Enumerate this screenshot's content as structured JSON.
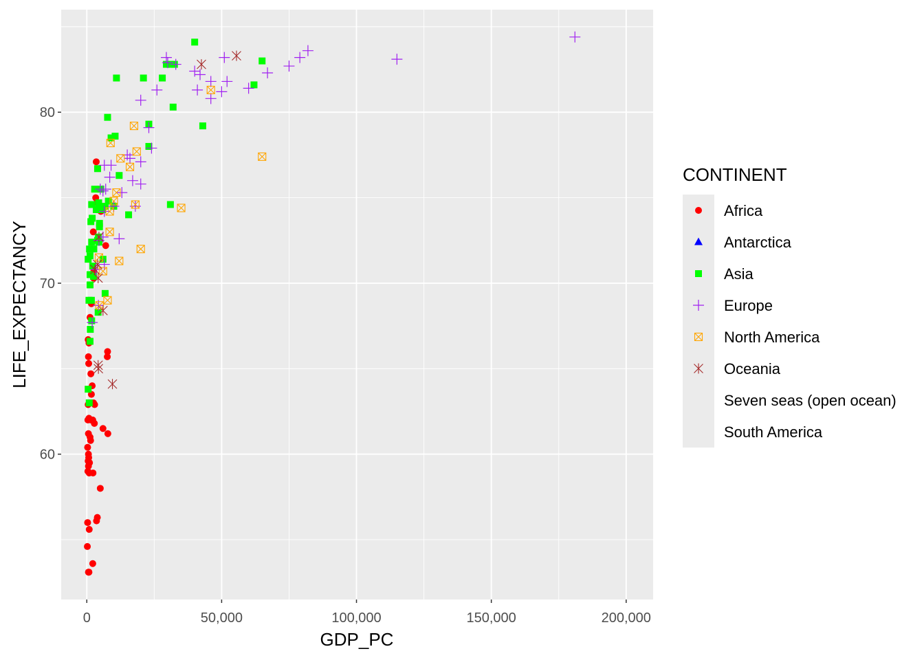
{
  "chart_data": {
    "type": "scatter",
    "xlabel": "GDP_PC",
    "ylabel": "LIFE_EXPECTANCY",
    "xlim": [
      -9500,
      210000
    ],
    "ylim": [
      51.5,
      86
    ],
    "x_ticks": [
      0,
      50000,
      100000,
      150000,
      200000
    ],
    "x_tick_labels": [
      "0",
      "50,000",
      "100,000",
      "150,000",
      "200,000"
    ],
    "y_ticks": [
      60,
      70,
      80
    ],
    "y_tick_labels": [
      "60",
      "70",
      "80"
    ],
    "grid": true,
    "legend": {
      "title": "CONTINENT",
      "placement": "right",
      "entries": [
        {
          "label": "Africa",
          "shape": "circle",
          "color": "#ff0000"
        },
        {
          "label": "Antarctica",
          "shape": "triangle",
          "color": "#0000ff"
        },
        {
          "label": "Asia",
          "shape": "square",
          "color": "#00ff00"
        },
        {
          "label": "Europe",
          "shape": "plus",
          "color": "#a020f0"
        },
        {
          "label": "North America",
          "shape": "boxx",
          "color": "#ffa500"
        },
        {
          "label": "Oceania",
          "shape": "asterisk",
          "color": "#a52a2a"
        },
        {
          "label": "Seven seas (open ocean)",
          "shape": "none",
          "color": ""
        },
        {
          "label": "South America",
          "shape": "none",
          "color": ""
        }
      ]
    },
    "series": [
      {
        "name": "Africa",
        "shape": "circle",
        "color": "#ff0000",
        "points": [
          [
            3500,
            77.1
          ],
          [
            3300,
            75
          ],
          [
            3700,
            74.7
          ],
          [
            3500,
            74.3
          ],
          [
            5200,
            74.2
          ],
          [
            2400,
            73
          ],
          [
            7000,
            72.2
          ],
          [
            3800,
            72.5
          ],
          [
            2500,
            70.3
          ],
          [
            2600,
            70.7
          ],
          [
            1700,
            68.8
          ],
          [
            1200,
            68
          ],
          [
            500,
            66.7
          ],
          [
            800,
            66.5
          ],
          [
            600,
            65.7
          ],
          [
            700,
            65.3
          ],
          [
            7700,
            66
          ],
          [
            7600,
            65.7
          ],
          [
            1500,
            64.7
          ],
          [
            2000,
            64
          ],
          [
            1700,
            63.5
          ],
          [
            500,
            62.9
          ],
          [
            1000,
            63
          ],
          [
            2500,
            63
          ],
          [
            2900,
            62.9
          ],
          [
            400,
            62
          ],
          [
            800,
            62.1
          ],
          [
            1500,
            62
          ],
          [
            2200,
            62
          ],
          [
            2800,
            61.8
          ],
          [
            6000,
            61.5
          ],
          [
            7800,
            61.2
          ],
          [
            600,
            61.2
          ],
          [
            1200,
            61
          ],
          [
            1400,
            60.8
          ],
          [
            300,
            60.4
          ],
          [
            600,
            60
          ],
          [
            700,
            59.8
          ],
          [
            500,
            59.6
          ],
          [
            600,
            59.3
          ],
          [
            1000,
            59.5
          ],
          [
            400,
            59
          ],
          [
            900,
            58.9
          ],
          [
            2300,
            58.9
          ],
          [
            5000,
            58
          ],
          [
            3900,
            56.3
          ],
          [
            3600,
            56.1
          ],
          [
            300,
            56
          ],
          [
            900,
            55.6
          ],
          [
            200,
            54.6
          ],
          [
            2200,
            53.6
          ],
          [
            600,
            53.1
          ],
          [
            800,
            53.1
          ]
        ]
      },
      {
        "name": "Antarctica",
        "shape": "triangle",
        "color": "#0000ff",
        "points": []
      },
      {
        "name": "Asia",
        "shape": "square",
        "color": "#00ff00",
        "points": [
          [
            40000,
            84.1
          ],
          [
            65000,
            83
          ],
          [
            29500,
            82.8
          ],
          [
            31000,
            82.8
          ],
          [
            32500,
            82.8
          ],
          [
            11000,
            82
          ],
          [
            21000,
            82
          ],
          [
            28000,
            82
          ],
          [
            62000,
            81.6
          ],
          [
            32000,
            80.3
          ],
          [
            7700,
            79.7
          ],
          [
            23000,
            79.3
          ],
          [
            43000,
            79.2
          ],
          [
            10500,
            78.6
          ],
          [
            9000,
            78.5
          ],
          [
            23000,
            78
          ],
          [
            4000,
            76.7
          ],
          [
            12000,
            76.3
          ],
          [
            5200,
            75.5
          ],
          [
            2900,
            75.5
          ],
          [
            8000,
            74.8
          ],
          [
            1800,
            74.6
          ],
          [
            4400,
            74.7
          ],
          [
            6800,
            74.5
          ],
          [
            3500,
            74.3
          ],
          [
            5800,
            74.3
          ],
          [
            31000,
            74.6
          ],
          [
            10000,
            74.5
          ],
          [
            15500,
            74
          ],
          [
            2000,
            73.8
          ],
          [
            1500,
            73.6
          ],
          [
            4700,
            73.5
          ],
          [
            4700,
            73.3
          ],
          [
            4300,
            72.7
          ],
          [
            4000,
            72.5
          ],
          [
            1800,
            72.4
          ],
          [
            4500,
            72.4
          ],
          [
            1000,
            72
          ],
          [
            2600,
            72
          ],
          [
            1200,
            71.6
          ],
          [
            500,
            71.4
          ],
          [
            6000,
            71.4
          ],
          [
            2200,
            71
          ],
          [
            1200,
            70.5
          ],
          [
            2500,
            70.4
          ],
          [
            1200,
            69.9
          ],
          [
            6800,
            69.4
          ],
          [
            800,
            69
          ],
          [
            1700,
            69
          ],
          [
            4200,
            68.3
          ],
          [
            1800,
            67.8
          ],
          [
            1300,
            67.3
          ],
          [
            1200,
            66.6
          ],
          [
            500,
            63.8
          ],
          [
            900,
            63
          ]
        ]
      },
      {
        "name": "Europe",
        "shape": "plus",
        "color": "#a020f0",
        "points": [
          [
            181000,
            84.4
          ],
          [
            115000,
            83.1
          ],
          [
            82000,
            83.6
          ],
          [
            79000,
            83.2
          ],
          [
            75000,
            82.7
          ],
          [
            67000,
            82.3
          ],
          [
            29500,
            83.2
          ],
          [
            30000,
            82.9
          ],
          [
            33000,
            82.8
          ],
          [
            51000,
            83.2
          ],
          [
            40000,
            82.4
          ],
          [
            42000,
            82.2
          ],
          [
            46000,
            81.8
          ],
          [
            52000,
            81.8
          ],
          [
            41000,
            81.3
          ],
          [
            50000,
            81.2
          ],
          [
            60000,
            81.4
          ],
          [
            26000,
            81.3
          ],
          [
            46000,
            80.8
          ],
          [
            20000,
            80.7
          ],
          [
            23000,
            79.1
          ],
          [
            24000,
            77.9
          ],
          [
            15000,
            77.5
          ],
          [
            16000,
            77.3
          ],
          [
            20000,
            77.1
          ],
          [
            9000,
            76.9
          ],
          [
            6500,
            76.9
          ],
          [
            8500,
            76.2
          ],
          [
            17000,
            76
          ],
          [
            20000,
            75.8
          ],
          [
            13000,
            75.3
          ],
          [
            7000,
            75.5
          ],
          [
            6000,
            75.4
          ],
          [
            5000,
            75.5
          ],
          [
            18000,
            74.5
          ],
          [
            6500,
            74.2
          ],
          [
            10000,
            74.5
          ],
          [
            12000,
            72.6
          ],
          [
            6000,
            72.7
          ],
          [
            4500,
            72.5
          ],
          [
            6500,
            71.1
          ],
          [
            3400,
            70.8
          ],
          [
            4300,
            68.7
          ],
          [
            2000,
            67.7
          ]
        ]
      },
      {
        "name": "North America",
        "shape": "boxx",
        "color": "#ffa500",
        "points": [
          [
            46000,
            81.3
          ],
          [
            17500,
            79.2
          ],
          [
            8800,
            78.2
          ],
          [
            65000,
            77.4
          ],
          [
            18500,
            77.7
          ],
          [
            12500,
            77.3
          ],
          [
            16000,
            76.8
          ],
          [
            11000,
            75.3
          ],
          [
            10000,
            74.8
          ],
          [
            18000,
            74.6
          ],
          [
            35000,
            74.4
          ],
          [
            8500,
            74.2
          ],
          [
            8500,
            73
          ],
          [
            20000,
            72
          ],
          [
            12000,
            71.3
          ],
          [
            4500,
            71.5
          ],
          [
            6000,
            70.7
          ],
          [
            7700,
            69
          ],
          [
            4700,
            68.7
          ]
        ]
      },
      {
        "name": "Oceania",
        "shape": "asterisk",
        "color": "#a52a2a",
        "points": [
          [
            55500,
            83.3
          ],
          [
            42500,
            82.8
          ],
          [
            4500,
            72.7
          ],
          [
            4000,
            71.1
          ],
          [
            3000,
            70.8
          ],
          [
            4200,
            70.3
          ],
          [
            6000,
            68.4
          ],
          [
            4200,
            65.2
          ],
          [
            4300,
            65
          ],
          [
            9500,
            64.1
          ]
        ]
      },
      {
        "name": "Seven seas (open ocean)",
        "shape": "none",
        "color": "",
        "points": []
      },
      {
        "name": "South America",
        "shape": "none",
        "color": "",
        "points": []
      }
    ]
  }
}
